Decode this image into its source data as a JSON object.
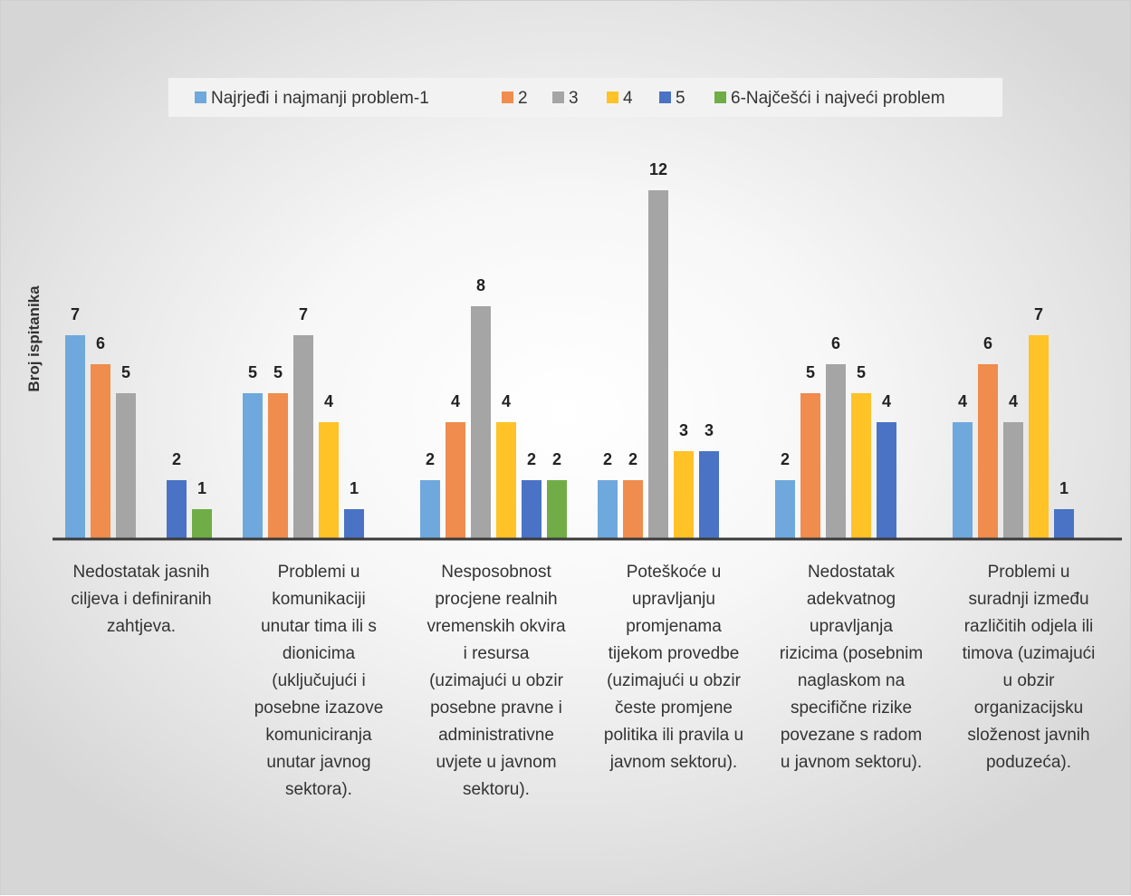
{
  "chart_data": {
    "type": "bar",
    "title": "",
    "xlabel": "",
    "ylabel": "Broj ispitanika",
    "ylim": [
      0,
      12
    ],
    "grid": false,
    "legend_position": "top",
    "colors": [
      "#6fa8dc",
      "#ef8c4e",
      "#a5a5a5",
      "#ffc227",
      "#4a73c5",
      "#70ad47"
    ],
    "series_labels": [
      "Najrjeđi i najmanji problem-1",
      "2",
      "3",
      "4",
      "5",
      "6-Najčešći i najveći problem"
    ],
    "categories": [
      "Nedostatak jasnih ciljeva i definiranih zahtjeva.",
      "Problemi u komunikaciji unutar tima ili s dionicima (uključujući i posebne izazove komuniciranja unutar javnog sektora).",
      "Nesposobnost procjene realnih vremenskih okvira i resursa (uzimajući u obzir posebne pravne i administrativne uvjete u javnom sektoru).",
      "Poteškoće u upravljanju promjenama tijekom provedbe (uzimajući u obzir česte promjene politika ili pravila u javnom sektoru).",
      "Nedostatak adekvatnog upravljanja rizicima (posebnim naglaskom na specifične rizike povezane s radom u javnom sektoru).",
      "Problemi u suradnji između različitih odjela ili timova (uzimajući u obzir organizacijsku složenost javnih poduzeća)."
    ],
    "category_lines": [
      [
        "Nedostatak jasnih",
        "ciljeva i definiranih",
        "zahtjeva."
      ],
      [
        "Problemi u",
        "komunikaciji",
        "unutar tima ili s",
        "dionicima",
        "(uključujući i",
        "posebne izazove",
        "komuniciranja",
        "unutar javnog",
        "sektora)."
      ],
      [
        "Nesposobnost",
        "procjene realnih",
        "vremenskih okvira",
        "i resursa",
        "(uzimajući u obzir",
        "posebne pravne i",
        "administrativne",
        "uvjete u javnom",
        "sektoru)."
      ],
      [
        "Poteškoće u",
        "upravljanju",
        "promjenama",
        "tijekom provedbe",
        "(uzimajući u obzir",
        "česte promjene",
        "politika ili pravila u",
        "javnom sektoru)."
      ],
      [
        "Nedostatak",
        "adekvatnog",
        "upravljanja",
        "rizicima (posebnim",
        "naglaskom na",
        "specifične rizike",
        "povezane s radom",
        "u javnom sektoru)."
      ],
      [
        "Problemi u",
        "suradnji između",
        "različitih odjela ili",
        "timova (uzimajući",
        "u obzir",
        "organizacijsku",
        "složenost javnih",
        "poduzeća)."
      ]
    ],
    "series": [
      {
        "name": "Najrjeđi i najmanji problem-1",
        "values": [
          7,
          5,
          2,
          2,
          2,
          4
        ]
      },
      {
        "name": "2",
        "values": [
          6,
          5,
          4,
          2,
          5,
          6
        ]
      },
      {
        "name": "3",
        "values": [
          5,
          7,
          8,
          12,
          6,
          4
        ]
      },
      {
        "name": "4",
        "values": [
          null,
          4,
          4,
          3,
          5,
          7
        ]
      },
      {
        "name": "5",
        "values": [
          2,
          1,
          2,
          3,
          4,
          1
        ]
      },
      {
        "name": "6-Najčešći i najveći problem",
        "values": [
          1,
          null,
          2,
          null,
          null,
          null
        ]
      }
    ]
  }
}
